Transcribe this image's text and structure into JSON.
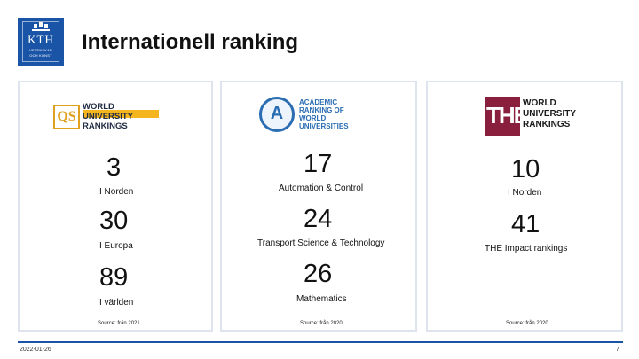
{
  "logo": {
    "name": "KTH",
    "line1": "VETENSKAP",
    "line2": "OCH KONST"
  },
  "title": "Internationell ranking",
  "cards": [
    {
      "logo_text": [
        "WORLD",
        "UNIVERSITY",
        "RANKINGS"
      ],
      "logo_mark": "QS",
      "items": [
        {
          "value": "3",
          "label": "I Norden"
        },
        {
          "value": "30",
          "label": "I Europa"
        },
        {
          "value": "89",
          "label": "I världen"
        }
      ],
      "source": "Source: från 2021"
    },
    {
      "logo_text": [
        "ACADEMIC",
        "RANKING OF",
        "WORLD",
        "UNIVERSITIES"
      ],
      "logo_mark": "A",
      "items": [
        {
          "value": "17",
          "label": "Automation & Control"
        },
        {
          "value": "24",
          "label": "Transport Science & Technology"
        },
        {
          "value": "26",
          "label": "Mathematics"
        }
      ],
      "source": "Source: från 2020"
    },
    {
      "logo_text": [
        "WORLD",
        "UNIVERSITY",
        "RANKINGS"
      ],
      "logo_mark": "THE",
      "items": [
        {
          "value": "10",
          "label": "I Norden"
        },
        {
          "value": "41",
          "label": "THE Impact rankings"
        }
      ],
      "source": "Source: från 2020"
    }
  ],
  "footer": {
    "date": "2022-01-26",
    "page": "7"
  },
  "colors": {
    "kth_blue": "#1954a6",
    "qs_gold": "#f4b51e",
    "arwu_blue": "#2a6db3",
    "the_red": "#8a1f3d"
  }
}
